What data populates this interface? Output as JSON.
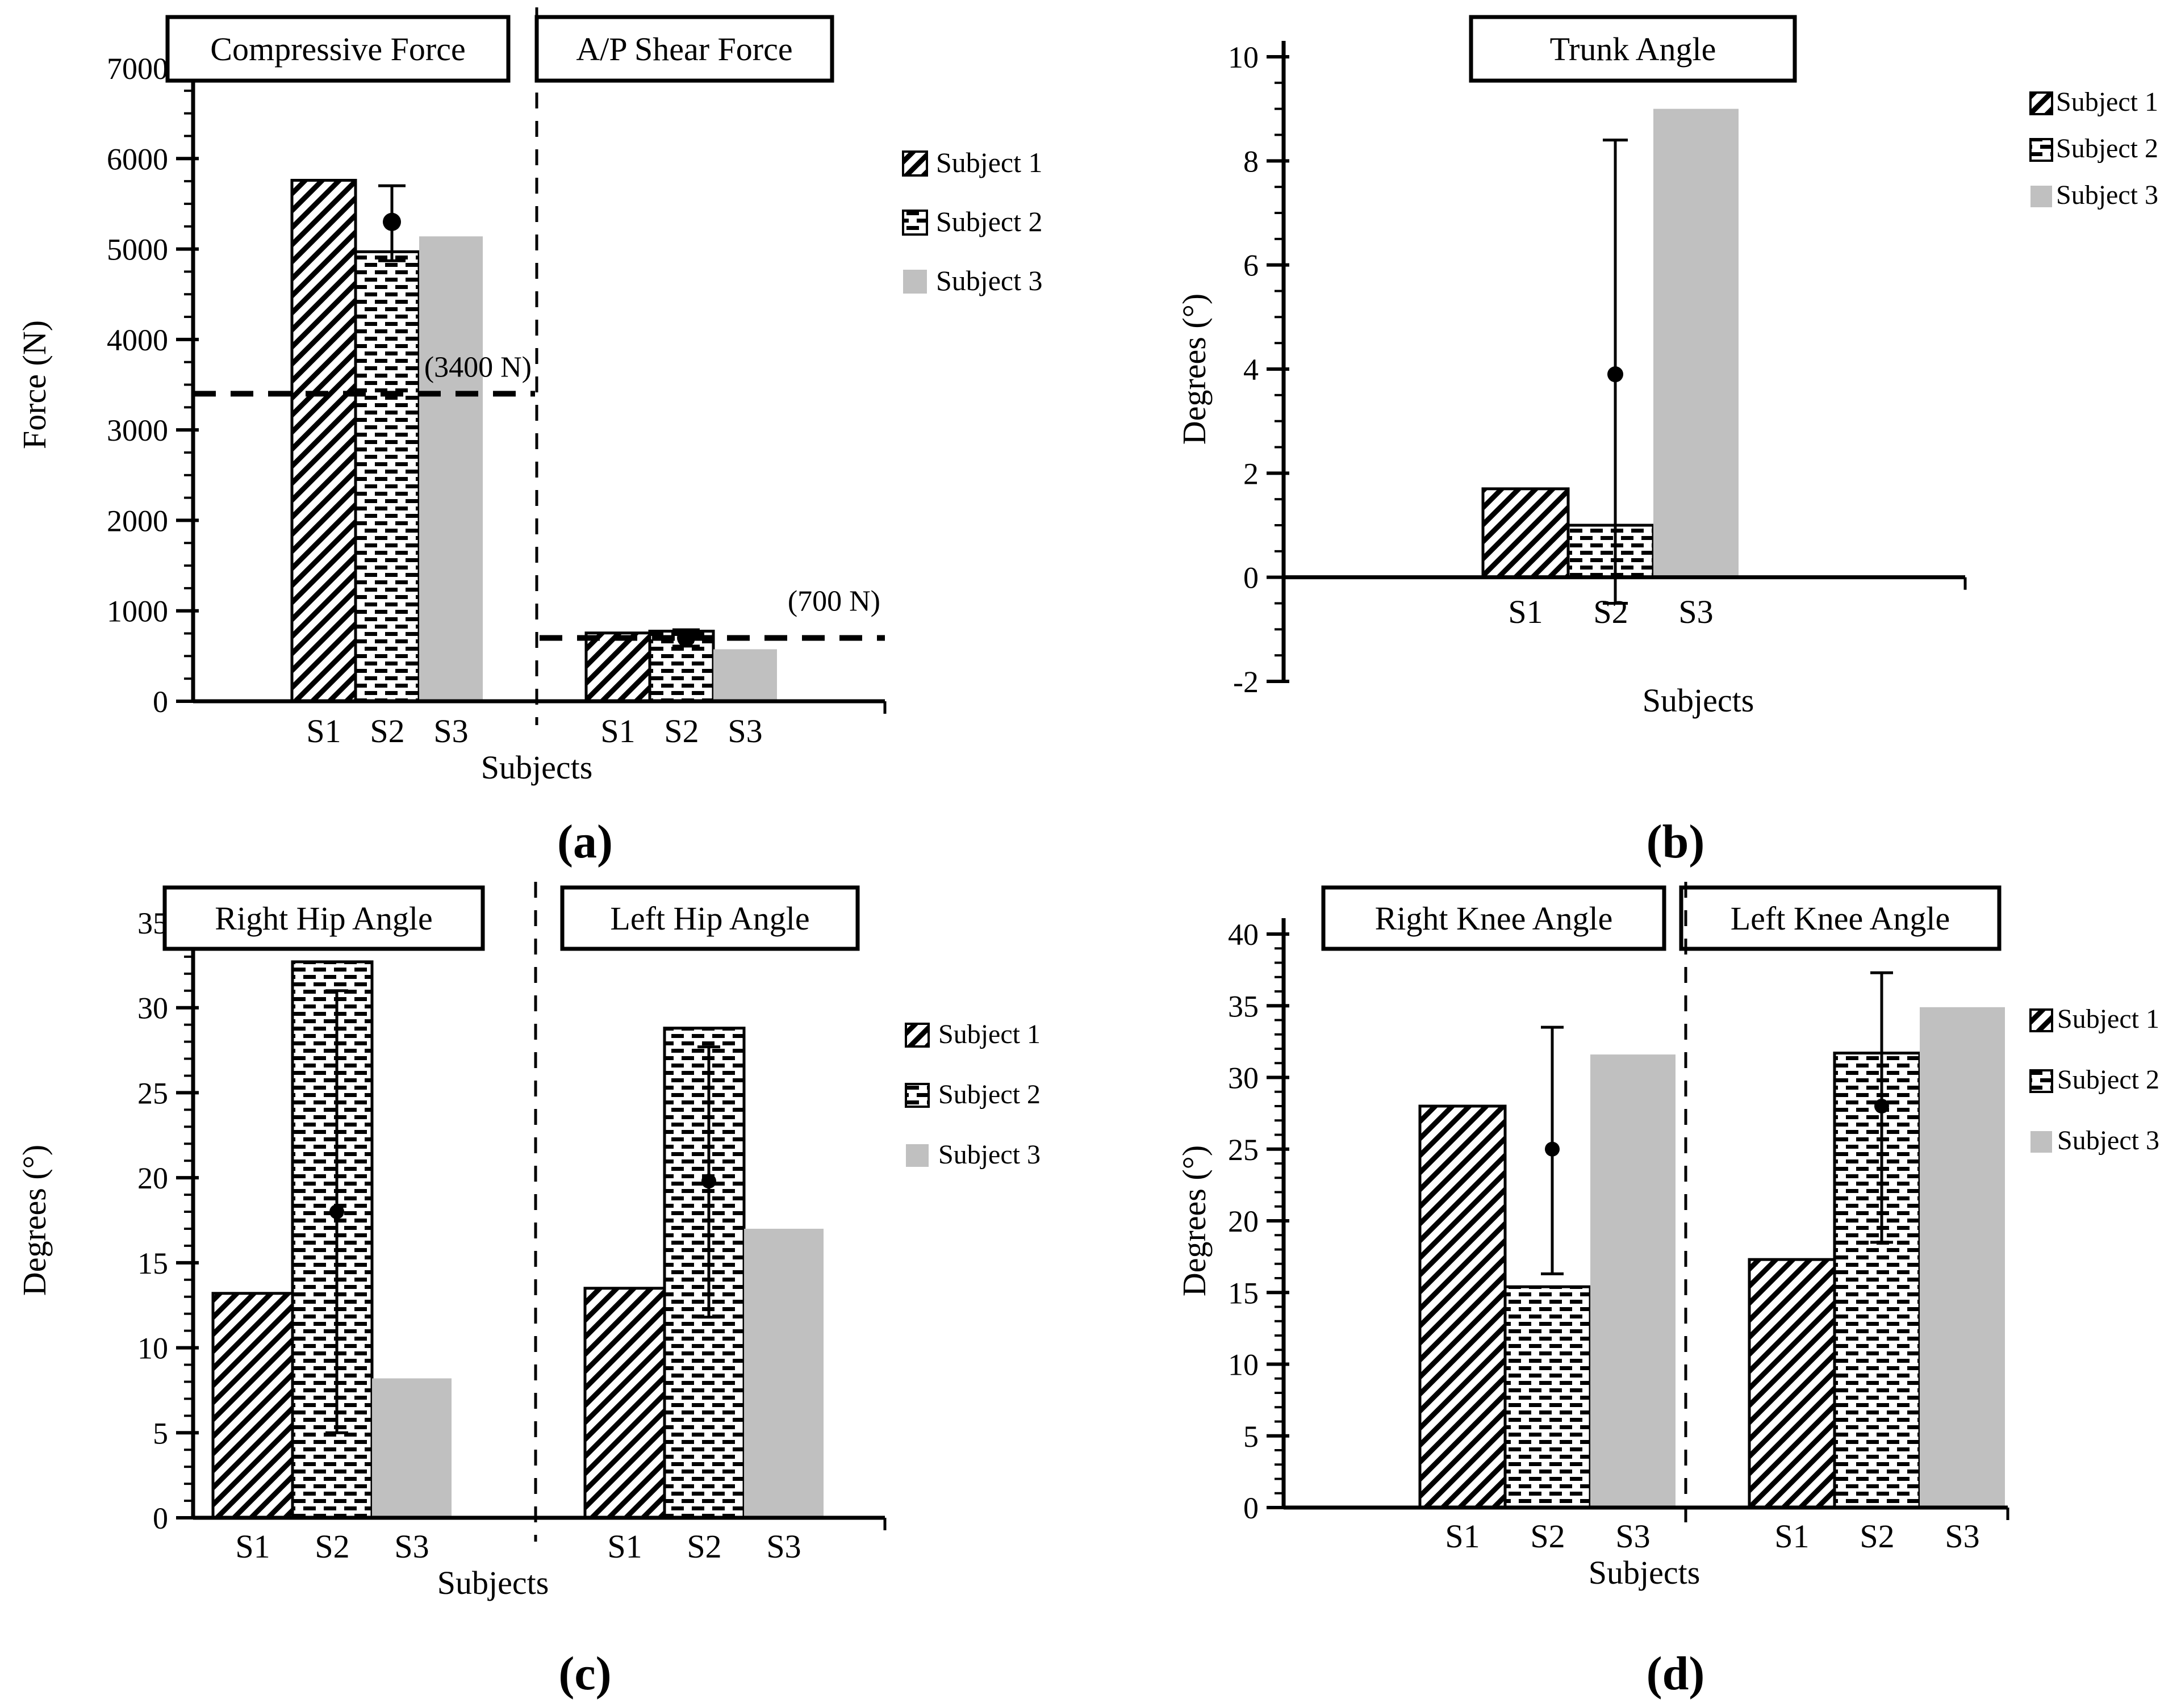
{
  "chart_data": [
    {
      "id": "a",
      "caption": "(a)",
      "type": "bar",
      "ylabel": "Force (N)",
      "xlabel": "Subjects",
      "ylim": [
        0,
        7000
      ],
      "ytick_step": 1000,
      "minor_tick_step": 250,
      "categories": [
        "S1",
        "S2",
        "S3"
      ],
      "legend": [
        "Subject 1",
        "Subject 2",
        "Subject 3"
      ],
      "legend_position": "right",
      "subplots": [
        {
          "title": "Compressive Force",
          "values": [
            5760,
            4970,
            5140
          ],
          "error_bar": {
            "category": "S2",
            "mean": 5300,
            "upper": 5700,
            "lower": 4870
          },
          "threshold": {
            "value": 3400,
            "label": "(3400 N)"
          }
        },
        {
          "title": "A/P Shear Force",
          "values": [
            755,
            775,
            575
          ],
          "error_bar": {
            "category": "S2",
            "mean": 700,
            "upper": 790,
            "lower": 610
          },
          "threshold": {
            "value": 700,
            "label": "(700 N)"
          }
        }
      ]
    },
    {
      "id": "b",
      "caption": "(b)",
      "type": "bar",
      "ylabel": "Degrees (°)",
      "xlabel": "Subjects",
      "ylim": [
        -2,
        10
      ],
      "ytick_step": 2,
      "minor_tick_step": 0.5,
      "categories": [
        "S1",
        "S2",
        "S3"
      ],
      "legend": [
        "Subject 1",
        "Subject 2",
        "Subject 3"
      ],
      "legend_position": "right",
      "subplots": [
        {
          "title": "Trunk Angle",
          "values": [
            1.7,
            1.0,
            9.0
          ],
          "error_bar": {
            "category": "S2",
            "mean": 3.9,
            "upper": 8.4,
            "lower": -0.5
          }
        }
      ]
    },
    {
      "id": "c",
      "caption": "(c)",
      "type": "bar",
      "ylabel": "Degrees (°)",
      "xlabel": "Subjects",
      "ylim": [
        0,
        35
      ],
      "ytick_step": 5,
      "minor_tick_step": 1,
      "categories": [
        "S1",
        "S2",
        "S3"
      ],
      "legend": [
        "Subject 1",
        "Subject 2",
        "Subject 3"
      ],
      "legend_position": "right",
      "subplots": [
        {
          "title": "Right Hip Angle",
          "values": [
            13.2,
            32.7,
            8.2
          ],
          "error_bar": {
            "category": "S2",
            "mean": 18.0,
            "upper": 31.0,
            "lower": 5.0
          }
        },
        {
          "title": "Left Hip Angle",
          "values": [
            13.5,
            28.8,
            17.0
          ],
          "error_bar": {
            "category": "S2",
            "mean": 19.8,
            "upper": 27.7,
            "lower": 11.8
          }
        }
      ]
    },
    {
      "id": "d",
      "caption": "(d)",
      "type": "bar",
      "ylabel": "Degrees (°)",
      "xlabel": "Subjects",
      "ylim": [
        0,
        40
      ],
      "ytick_step": 5,
      "minor_tick_step": 1,
      "categories": [
        "S1",
        "S2",
        "S3"
      ],
      "legend": [
        "Subject 1",
        "Subject 2",
        "Subject 3"
      ],
      "legend_position": "right",
      "subplots": [
        {
          "title": "Right Knee Angle",
          "values": [
            28.0,
            15.4,
            31.6
          ],
          "error_bar": {
            "category": "S2",
            "mean": 25.0,
            "upper": 33.5,
            "lower": 16.3
          }
        },
        {
          "title": "Left Knee Angle",
          "values": [
            17.3,
            31.7,
            34.9
          ],
          "error_bar": {
            "category": "S2",
            "mean": 28.0,
            "upper": 37.3,
            "lower": 18.5
          }
        }
      ]
    }
  ],
  "series_styles": [
    {
      "name": "Subject 1",
      "pattern": "diagonal-hatch",
      "fill": "#ffffff",
      "line": "#000000"
    },
    {
      "name": "Subject 2",
      "pattern": "horizontal-dashes",
      "fill": "#ffffff",
      "line": "#000000"
    },
    {
      "name": "Subject 3",
      "pattern": "solid",
      "fill": "#c0c0c0"
    }
  ],
  "colors": {
    "ink": "#000000",
    "background": "#ffffff",
    "subject3_gray": "#c0c0c0"
  }
}
